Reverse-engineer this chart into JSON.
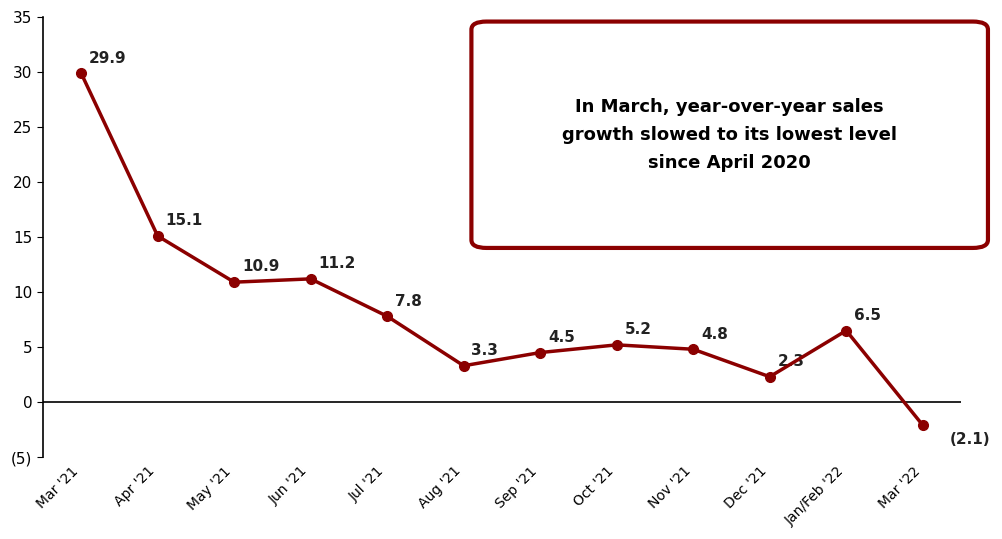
{
  "x_labels": [
    "Mar '21",
    "Apr '21",
    "May '21",
    "Jun '21",
    "Jul '21",
    "Aug '21",
    "Sep '21",
    "Oct '21",
    "Nov '21",
    "Dec '21",
    "Jan/Feb '22",
    "Mar '22"
  ],
  "values": [
    29.9,
    15.1,
    10.9,
    11.2,
    7.8,
    3.3,
    4.5,
    5.2,
    4.8,
    2.3,
    6.5,
    -2.1
  ],
  "line_color": "#8B0000",
  "marker_color": "#8B0000",
  "ylim": [
    -5,
    35
  ],
  "yticks": [
    -5,
    0,
    5,
    10,
    15,
    20,
    25,
    30,
    35
  ],
  "ytick_labels": [
    "(5)",
    "0",
    "5",
    "10",
    "15",
    "20",
    "25",
    "30",
    "35"
  ],
  "annotation_box_text": "In March, year-over-year sales\ngrowth slowed to its lowest level\nsince April 2020",
  "annotation_box_color": "#8B0000",
  "background_color": "#ffffff",
  "data_label_color": "#222222",
  "line_width": 2.5,
  "marker_size": 7,
  "data_labels": [
    "29.9",
    "15.1",
    "10.9",
    "11.2",
    "7.8",
    "3.3",
    "4.5",
    "5.2",
    "4.8",
    "2.3",
    "6.5",
    "(2.1)"
  ],
  "label_xoffsets": [
    0.1,
    0.1,
    0.1,
    0.1,
    0.1,
    0.1,
    0.1,
    0.1,
    0.1,
    0.1,
    0.1,
    0.35
  ],
  "label_yoffsets": [
    0.7,
    0.7,
    0.7,
    0.7,
    0.7,
    0.7,
    0.7,
    0.7,
    0.7,
    0.7,
    0.7,
    -0.6
  ],
  "label_vas": [
    "bottom",
    "bottom",
    "bottom",
    "bottom",
    "bottom",
    "bottom",
    "bottom",
    "bottom",
    "bottom",
    "bottom",
    "bottom",
    "top"
  ]
}
